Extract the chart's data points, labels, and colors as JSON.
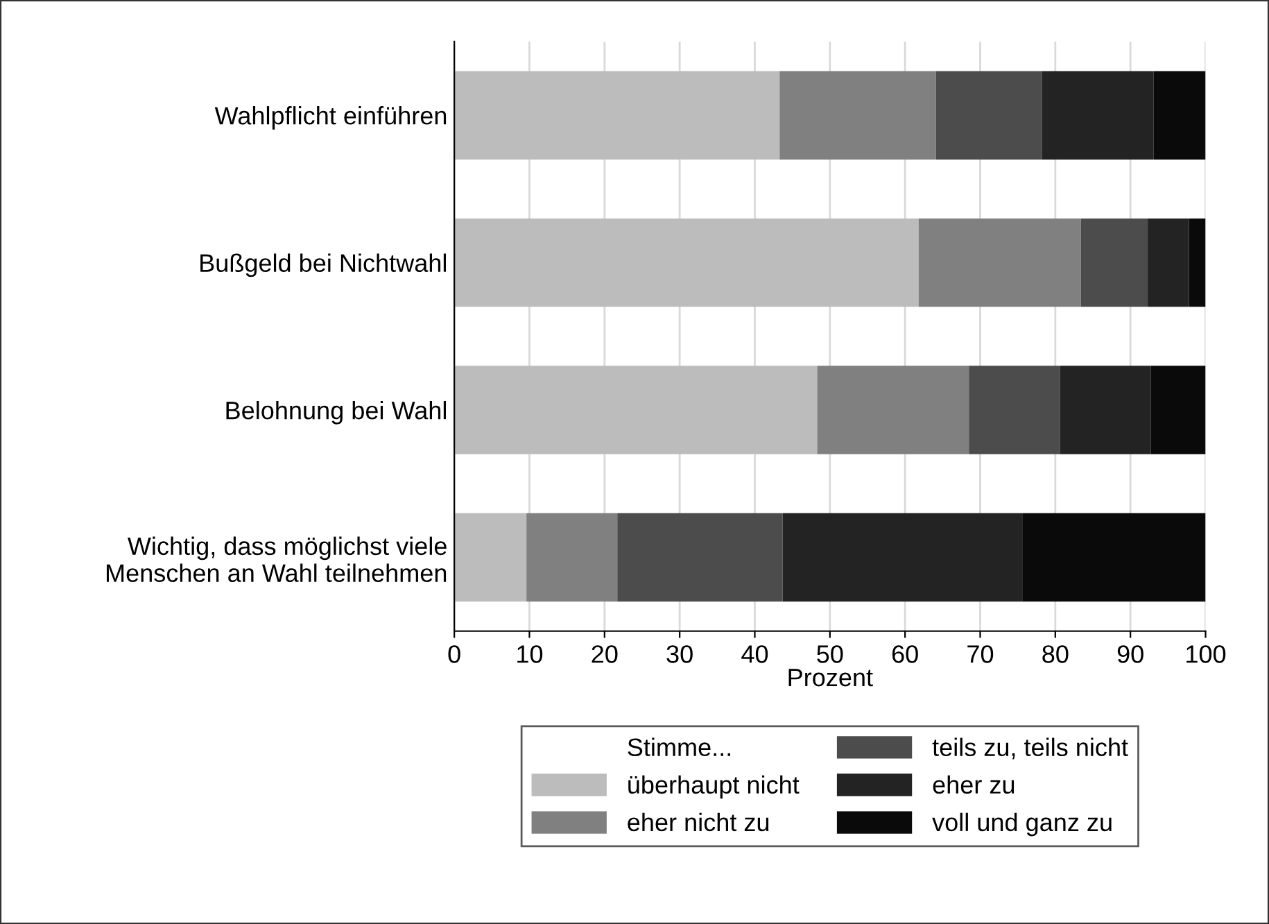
{
  "chart_data": {
    "type": "bar",
    "orientation": "horizontal",
    "stacked": true,
    "categories": [
      "Wahlpflicht einführen",
      "Bußgeld bei Nichtwahl",
      "Belohnung bei Wahl",
      "Wichtig, dass möglichst viele\nMenschen an Wahl teilnehmen"
    ],
    "series": [
      {
        "name": "überhaupt nicht",
        "color": "#bcbcbc",
        "values": [
          43.3,
          61.8,
          48.3,
          9.6
        ]
      },
      {
        "name": "eher nicht zu",
        "color": "#808080",
        "values": [
          20.8,
          21.6,
          20.2,
          12.1
        ]
      },
      {
        "name": "teils zu, teils nicht",
        "color": "#4c4c4c",
        "values": [
          14.1,
          8.9,
          12.1,
          22.0
        ]
      },
      {
        "name": "eher zu",
        "color": "#232323",
        "values": [
          14.9,
          5.5,
          12.1,
          31.9
        ]
      },
      {
        "name": "voll und ganz zu",
        "color": "#0a0a0a",
        "values": [
          6.9,
          2.2,
          7.3,
          24.4
        ]
      }
    ],
    "xlabel": "Prozent",
    "legend_title": "Stimme...",
    "legend": "bottom",
    "xlim": [
      0,
      100
    ],
    "xticks": [
      0,
      10,
      20,
      30,
      40,
      50,
      60,
      70,
      80,
      90,
      100
    ],
    "grid": "x"
  }
}
